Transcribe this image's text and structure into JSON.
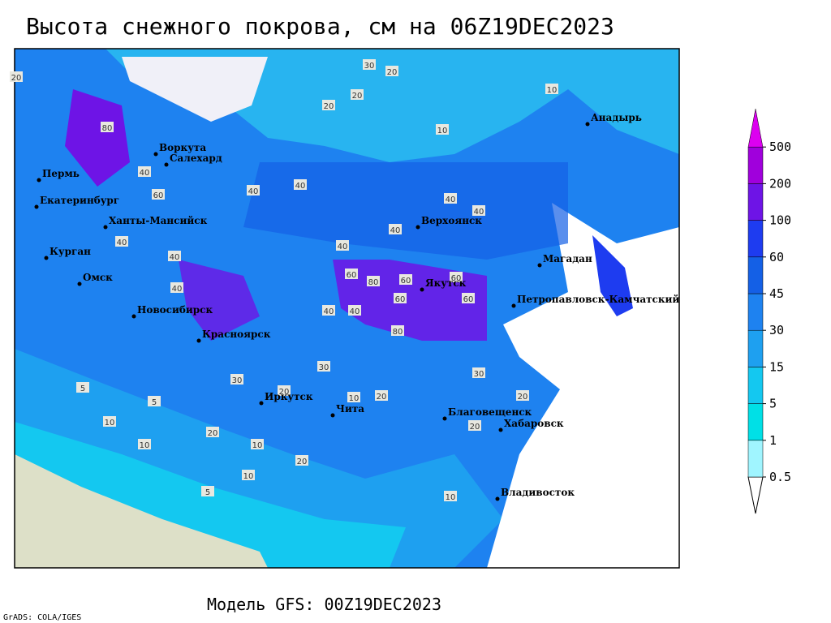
{
  "header": {
    "title": "Высота снежного покрова, см на 06Z19DEC2023"
  },
  "footer": {
    "model": "Модель GFS: 00Z19DEC2023",
    "credit": "GrADS: COLA/IGES"
  },
  "map": {
    "cities": [
      "Воркута",
      "Салехард",
      "Пермь",
      "Екатеринбург",
      "Ханты-Мансийск",
      "Курган",
      "Омск",
      "Новосибирск",
      "Красноярск",
      "Иркутск",
      "Чита",
      "Верхоянск",
      "Якутск",
      "Магадан",
      "Анадырь",
      "Петропавловск-Камчатский",
      "Благовещенск",
      "Хабаровск",
      "Владивосток"
    ],
    "contour_labels": [
      30,
      20,
      20,
      20,
      10,
      10,
      80,
      40,
      60,
      40,
      40,
      40,
      40,
      40,
      40,
      40,
      60,
      80,
      60,
      60,
      60,
      60,
      80,
      40,
      40,
      30,
      30,
      20,
      20,
      10,
      10,
      5,
      10,
      10,
      5,
      20,
      10,
      20,
      10,
      5,
      20,
      10,
      30,
      20,
      40,
      40,
      20
    ]
  },
  "colorbar": {
    "levels": [
      {
        "value": 0.5,
        "color": "#a0f5ff"
      },
      {
        "value": 1,
        "color": "#00e0e6"
      },
      {
        "value": 5,
        "color": "#14c8f0"
      },
      {
        "value": 15,
        "color": "#1ea0f0"
      },
      {
        "value": 30,
        "color": "#1e82f0"
      },
      {
        "value": 45,
        "color": "#1460e6"
      },
      {
        "value": 60,
        "color": "#1e3cf0"
      },
      {
        "value": 100,
        "color": "#6e14e6"
      },
      {
        "value": 200,
        "color": "#a000dc"
      },
      {
        "value": 500,
        "color": "#dc00f0"
      }
    ],
    "under_color": "#ffffff"
  }
}
